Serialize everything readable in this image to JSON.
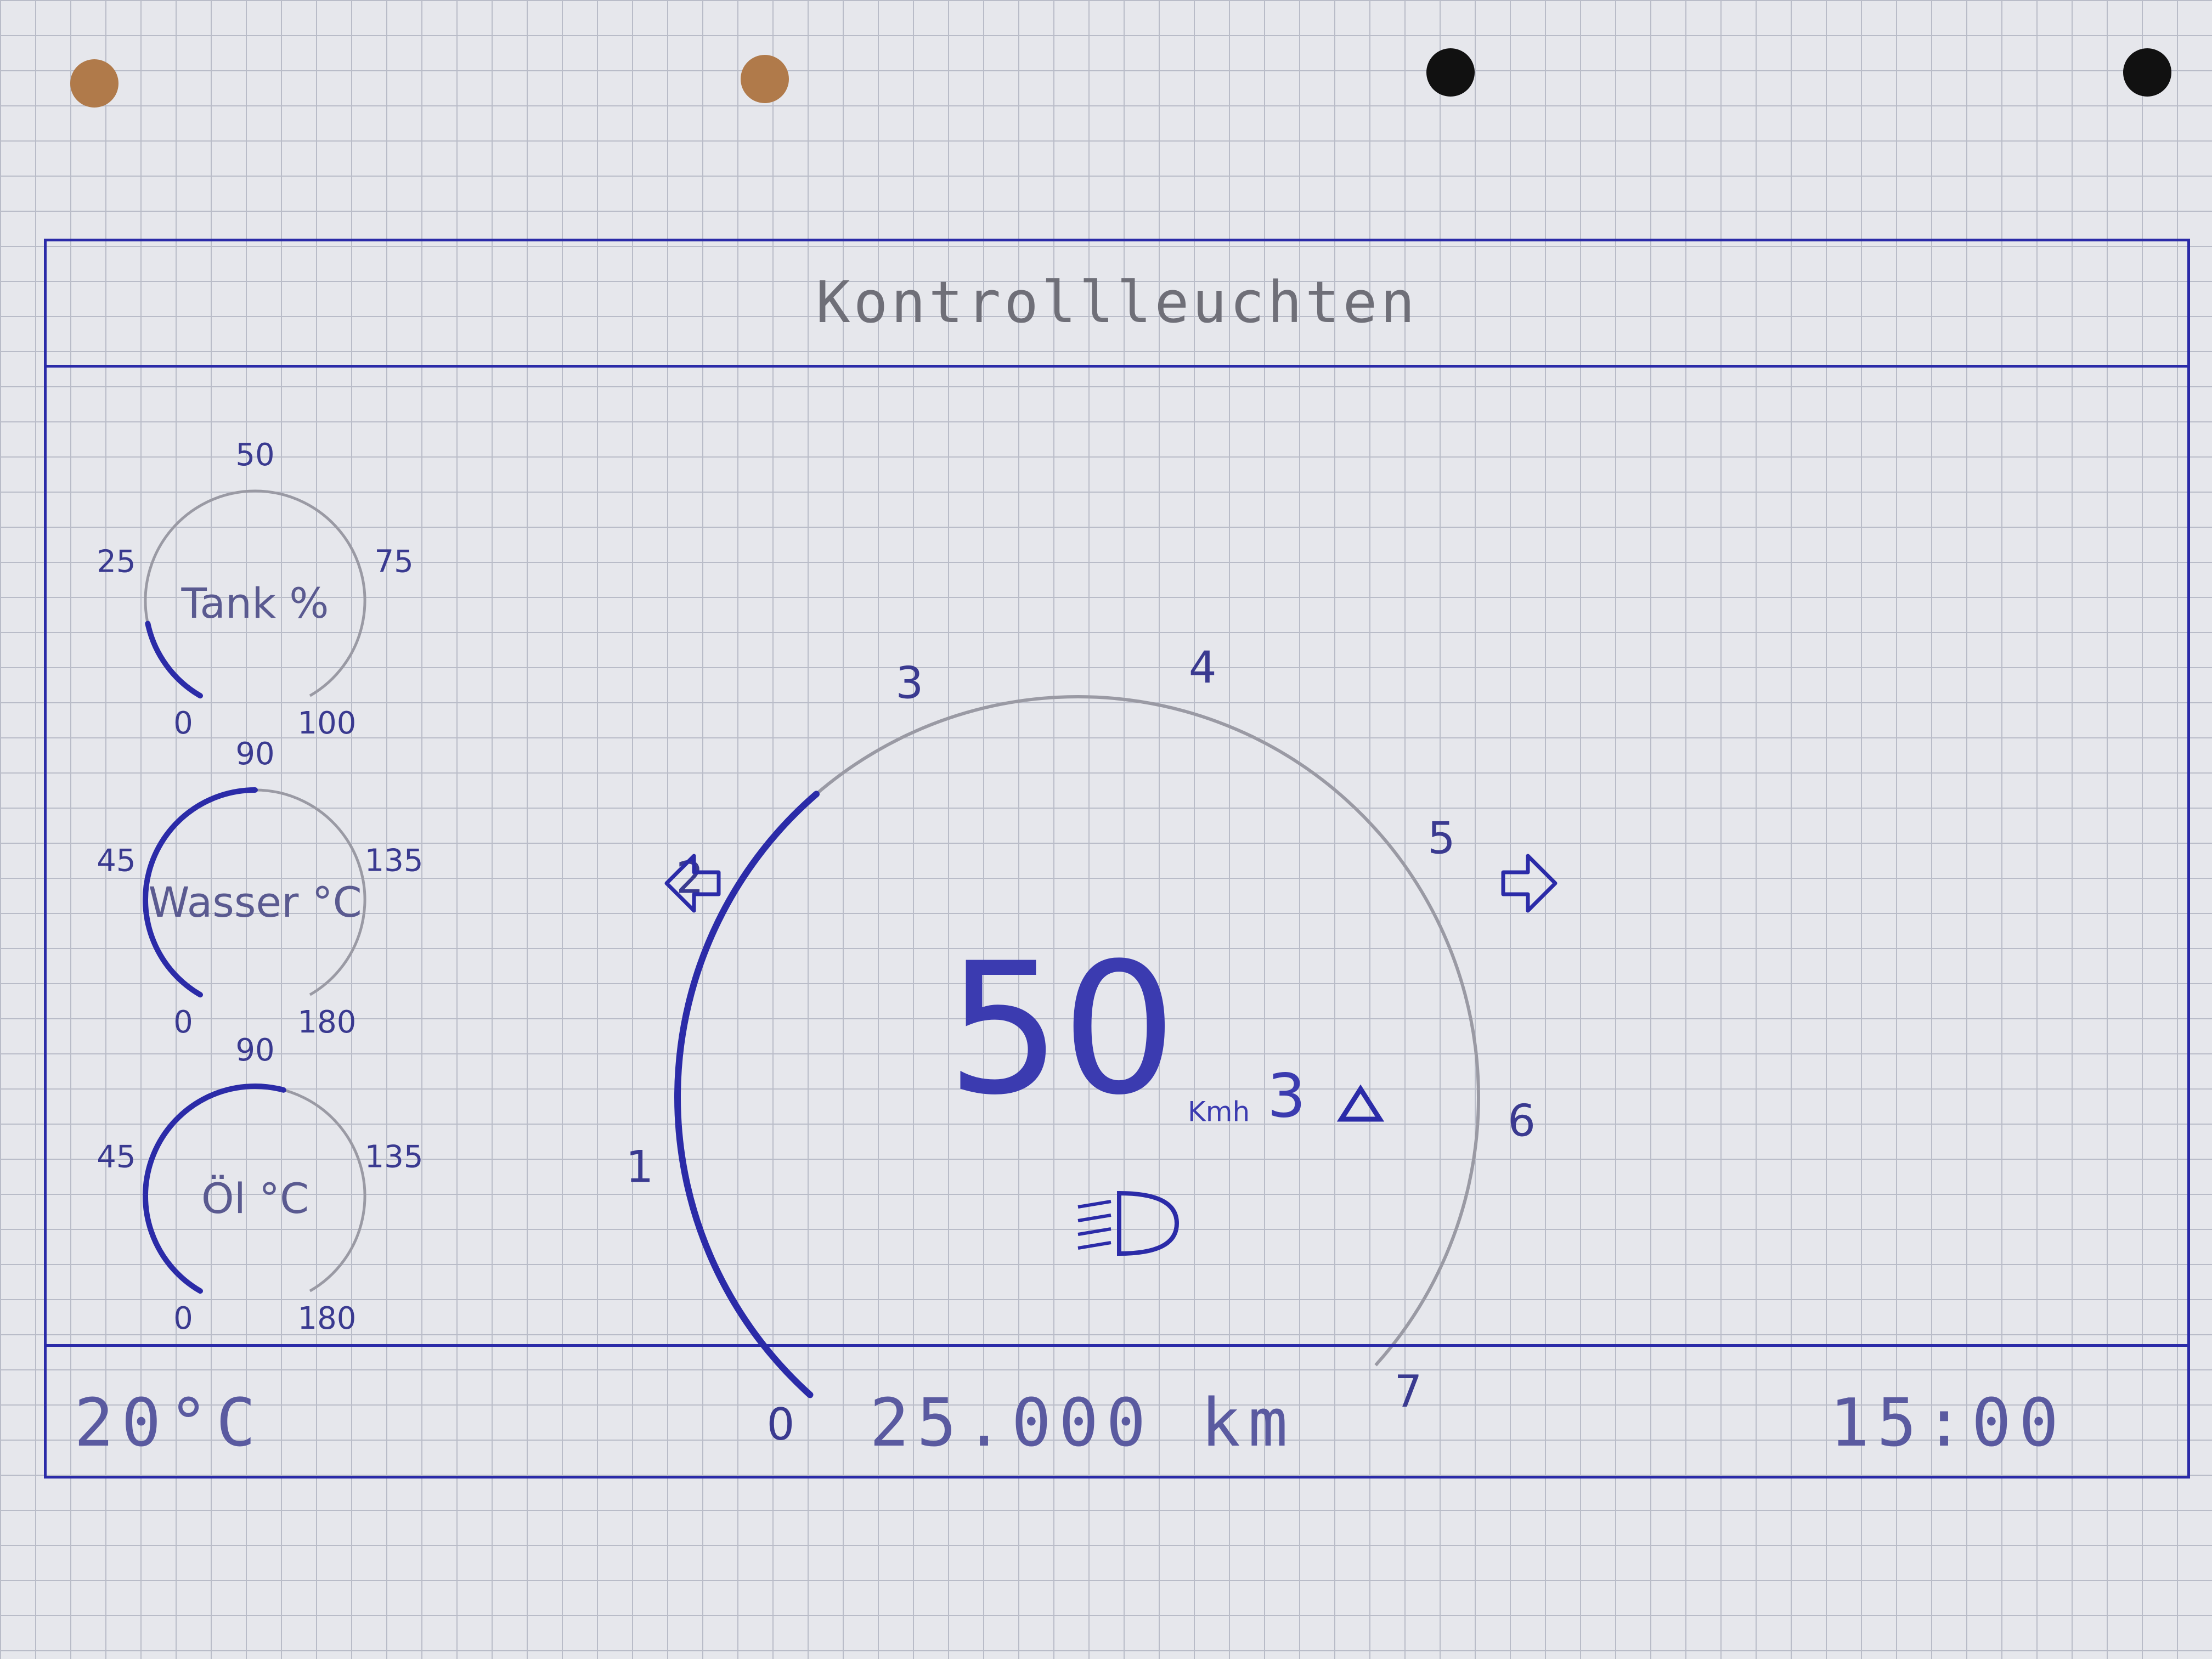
{
  "header": {
    "title": "Kontrollleuchten"
  },
  "gauges": {
    "tank": {
      "label": "Tank %",
      "ticks": [
        "0",
        "25",
        "50",
        "75",
        "100"
      ],
      "level": 0.16
    },
    "wasser": {
      "label": "Wasser °C",
      "ticks": [
        "0",
        "45",
        "90",
        "135",
        "180"
      ],
      "level": 0.5
    },
    "oel": {
      "label": "Öl °C",
      "ticks": [
        "0",
        "45",
        "90",
        "135",
        "180"
      ],
      "level": 0.55
    }
  },
  "speedometer": {
    "speed": "50",
    "unit": "Kmh",
    "gear": "3",
    "gear_icon": "warning-triangle-icon",
    "ticks": [
      "0",
      "1",
      "2",
      "3",
      "4",
      "5",
      "6",
      "7"
    ],
    "level": 0.36,
    "left_indicator_icon": "arrow-left-icon",
    "right_indicator_icon": "arrow-right-icon",
    "headlight_icon": "headlight-icon"
  },
  "footer": {
    "temperature": "20°C",
    "odometer": "25.000 km",
    "time": "15:00"
  },
  "colors": {
    "ink": "#2b2ba8",
    "pencil": "#9a9aa4",
    "paper": "#e6e7ec"
  }
}
